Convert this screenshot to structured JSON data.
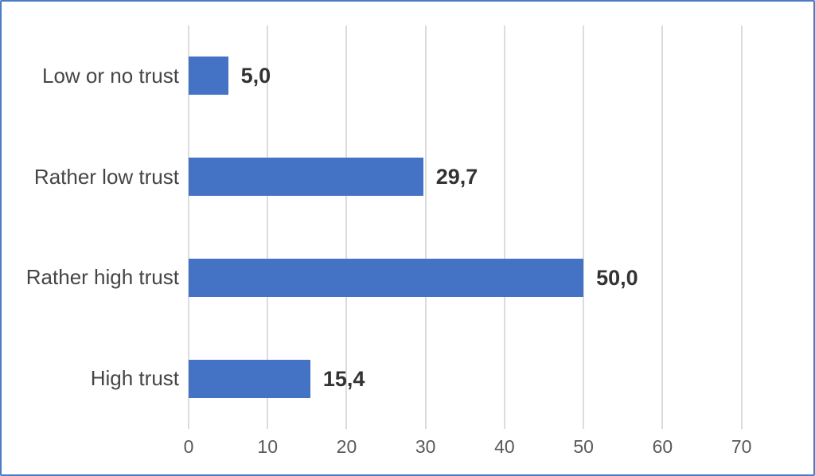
{
  "chart_data": {
    "type": "bar",
    "orientation": "horizontal",
    "title": "",
    "xlabel": "",
    "ylabel": "",
    "categories": [
      "Low or no trust",
      "Rather low trust",
      "Rather high trust",
      "High trust"
    ],
    "values": [
      5.0,
      29.7,
      50.0,
      15.4
    ],
    "value_labels": [
      "5,0",
      "29,7",
      "50,0",
      "15,4"
    ],
    "x_ticks": [
      0,
      10,
      20,
      30,
      40,
      50,
      60,
      70
    ],
    "xlim": [
      0,
      77.5
    ],
    "grid": true,
    "legend": "none",
    "colors": {
      "bar": "#4472c4",
      "border": "#4b7cc4",
      "gridline": "#dcdcdc",
      "category_label": "#454545",
      "value_label": "#333333",
      "tick_label": "#595959"
    }
  }
}
